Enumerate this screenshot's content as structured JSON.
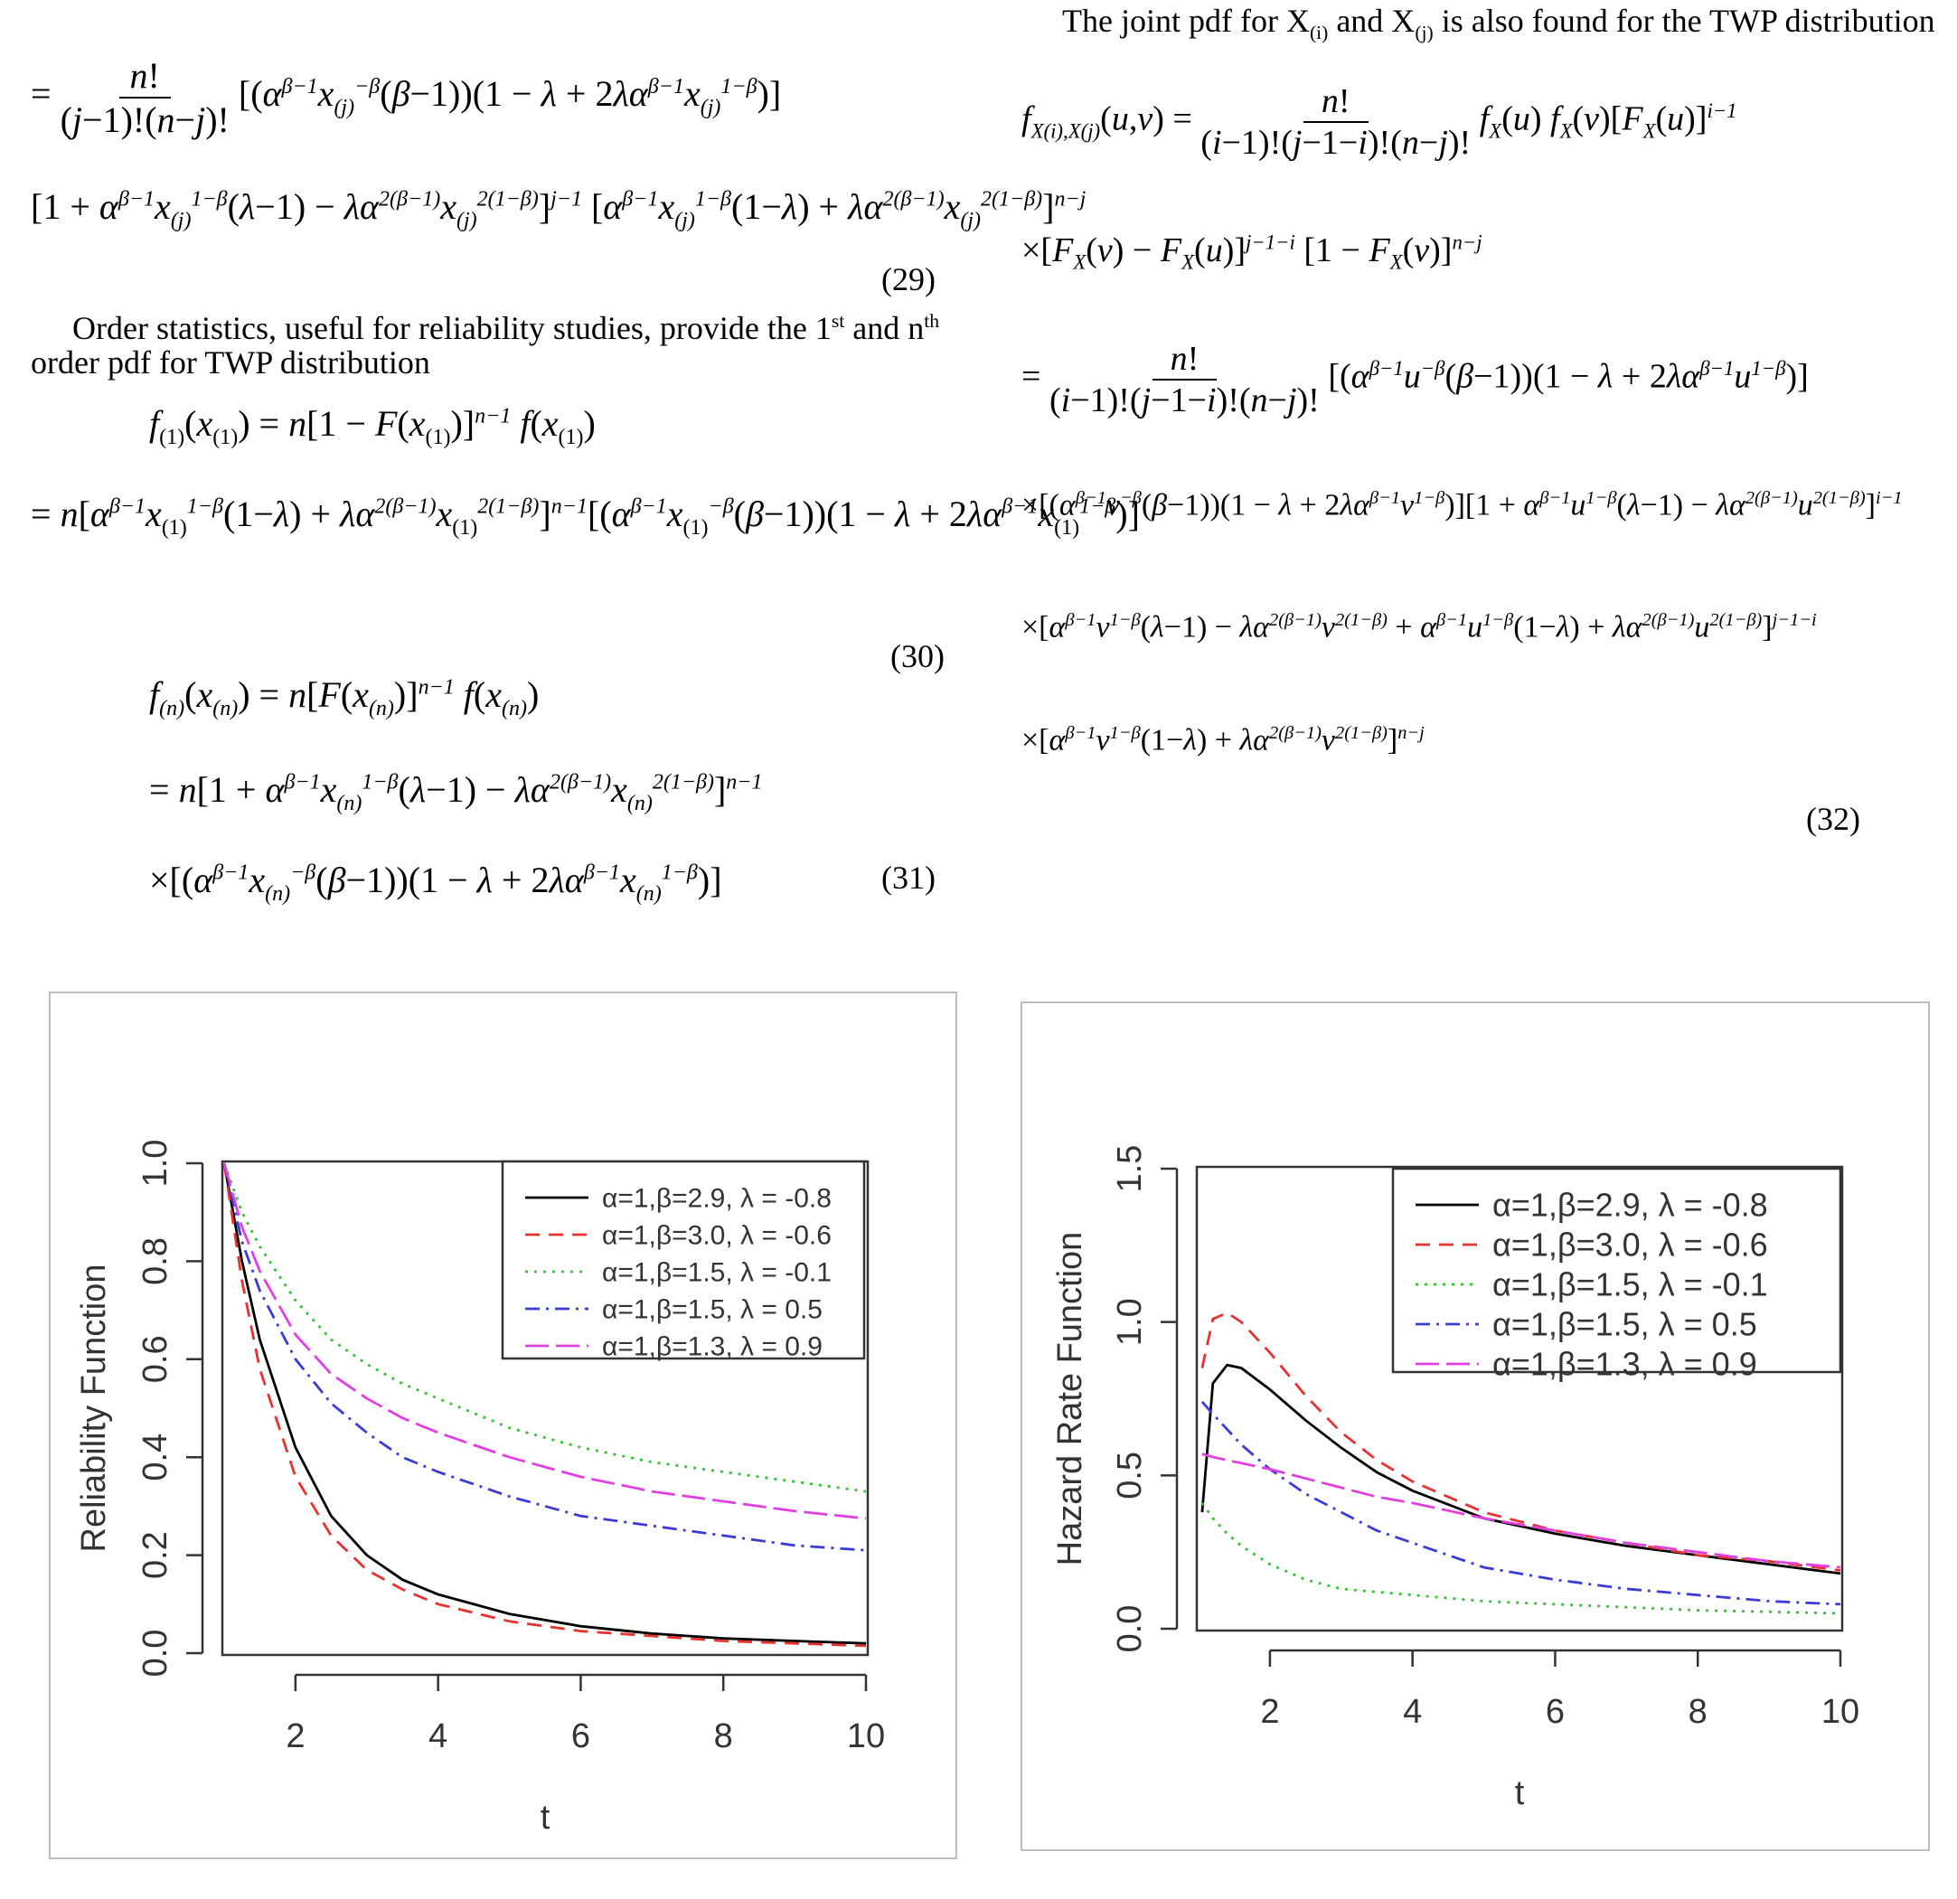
{
  "left_column": {
    "eq29_lines": [
      "= n! / ((j−1)!(n−j)!) [ (α^(β−1) x₍ⱼ₎^(−β) (β−1)) (1 − λ + 2λα^(β−1) x₍ⱼ₎^(1−β)) ]",
      "[ 1 + α^(β−1) x₍ⱼ₎^(1−β) (λ−1) − λα^(2(β−1)) x₍ⱼ₎^(2(1−β)) ]^(j−1) [ α^(β−1) x₍ⱼ₎^(1−β) (1−λ) + λα^(2(β−1)) x₍ⱼ₎^(2(1−β)) ]^(n−j)"
    ],
    "eq29_num": "(29)",
    "paragraph_line1": "Order statistics, useful for reliability studies, provide the 1st and nth",
    "paragraph_line2": "order pdf for TWP distribution",
    "eq30_lines": [
      "f₍₁₎(x₍₁₎) = n[1 − F(x₍₁₎)]^(n−1) f(x₍₁₎)",
      "= n[ α^(β−1) x₍₁₎^(1−β) (1−λ) + λα^(2(β−1)) x₍₁₎^(2(1−β)) ]^(n−1) [ (α^(β−1) x₍₁₎^(−β) (β−1)) (1 − λ + 2λα^(β−1) x₍₁₎^(1−β)) ]"
    ],
    "eq30_num": "(30)",
    "eq31_lines": [
      "f₍ₙ₎(x₍ₙ₎) = n[F(x₍ₙ₎)]^(n−1) f(x₍ₙ₎)",
      "= n[ 1 + α^(β−1) x₍ₙ₎^(1−β) (λ−1) − λα^(2(β−1)) x₍ₙ₎^(2(1−β)) ]^(n−1)",
      "× [ (α^(β−1) x₍ₙ₎^(−β) (β−1)) (1 − λ + 2λα^(β−1) x₍ₙ₎^(1−β)) ]"
    ],
    "eq31_num": "(31)"
  },
  "right_column": {
    "intro": "The joint pdf for X(i) and X(j) is also found for the TWP distribution",
    "eq32_lines": [
      "f_{X(i),X(j)}(u,v) = n! / ((i−1)!(j−1−i)!(n−j)!) f_X(u) f_X(v) [F_X(u)]^(i−1)",
      "× [F_X(v) − F_X(u)]^(j−1−i) [1 − F_X(v)]^(n−j)",
      "= n! / ((i−1)!(j−1−i)!(n−j)!) [ (α^(β−1) u^(−β) (β−1)) (1 − λ + 2λα^(β−1) u^(1−β)) ]",
      "× [ (α^(β−1) v^(−β) (β−1)) (1 − λ + 2λα^(β−1) v^(1−β)) ] [ 1 + α^(β−1) u^(1−β) (λ−1) − λα^(2(β−1)) u^(2(1−β)) ]^(i−1)",
      "× [ α^(β−1) v^(1−β) (λ−1) − λα^(2(β−1)) v^(2(1−β)) + α^(β−1) u^(1−β) (1−λ) + λα^(2(β−1)) u^(2(1−β)) ]^(j−1−i)",
      "× [ α^(β−1) v^(1−β) (1−λ) + λα^(2(β−1)) v^(2(1−β)) ]^(n−j)"
    ],
    "eq32_num": "(32)"
  },
  "legend_entries": [
    "α=1,β=2.9, λ = -0.8",
    "α=1,β=3.0, λ = -0.6",
    "α=1,β=1.5, λ = -0.1",
    "α=1,β=1.5, λ = 0.5",
    "α=1,β=1.3, λ = 0.9"
  ],
  "series_colors": [
    "#000000",
    "#e8322f",
    "#33c233",
    "#3b3bd6",
    "#e040e0"
  ],
  "chart_data": [
    {
      "type": "line",
      "xlabel": "t",
      "ylabel": "Reliability Function",
      "xlim": [
        1,
        10
      ],
      "ylim": [
        0,
        1.0
      ],
      "xticks": [
        2,
        4,
        6,
        8,
        10
      ],
      "yticks": [
        0.0,
        0.2,
        0.4,
        0.6,
        0.8,
        1.0
      ],
      "ytick_labels": [
        "0.0",
        "0.2",
        "0.4",
        "0.6",
        "0.8",
        "1.0"
      ],
      "legend_position": "top-right",
      "grid": false,
      "x": [
        1,
        1.25,
        1.5,
        2,
        2.5,
        3,
        3.5,
        4,
        5,
        6,
        7,
        8,
        9,
        10
      ],
      "series": [
        {
          "name": "α=1,β=2.9, λ = -0.8",
          "style": "solid",
          "values": [
            1.0,
            0.8,
            0.64,
            0.42,
            0.28,
            0.2,
            0.15,
            0.12,
            0.08,
            0.055,
            0.04,
            0.03,
            0.025,
            0.02
          ]
        },
        {
          "name": "α=1,β=3.0, λ = -0.6",
          "style": "dashed",
          "values": [
            1.0,
            0.76,
            0.58,
            0.36,
            0.24,
            0.17,
            0.13,
            0.1,
            0.065,
            0.045,
            0.035,
            0.025,
            0.02,
            0.015
          ]
        },
        {
          "name": "α=1,β=1.5, λ = -0.1",
          "style": "dotted",
          "values": [
            1.0,
            0.9,
            0.83,
            0.72,
            0.64,
            0.59,
            0.55,
            0.52,
            0.46,
            0.42,
            0.39,
            0.37,
            0.35,
            0.33
          ]
        },
        {
          "name": "α=1,β=1.5, λ = 0.5",
          "style": "dashdot",
          "values": [
            1.0,
            0.84,
            0.74,
            0.6,
            0.51,
            0.45,
            0.4,
            0.37,
            0.32,
            0.28,
            0.26,
            0.24,
            0.22,
            0.21
          ]
        },
        {
          "name": "α=1,β=1.3, λ = 0.9",
          "style": "longdash",
          "values": [
            1.0,
            0.87,
            0.78,
            0.65,
            0.57,
            0.52,
            0.48,
            0.45,
            0.4,
            0.36,
            0.33,
            0.31,
            0.29,
            0.275
          ]
        }
      ]
    },
    {
      "type": "line",
      "xlabel": "t",
      "ylabel": "Hazard Rate Function",
      "xlim": [
        1,
        10
      ],
      "ylim": [
        0,
        1.5
      ],
      "xticks": [
        2,
        4,
        6,
        8,
        10
      ],
      "yticks": [
        0.0,
        0.5,
        1.0,
        1.5
      ],
      "ytick_labels": [
        "0.0",
        "0.5",
        "1.0",
        "1.5"
      ],
      "legend_position": "top-right",
      "grid": false,
      "x": [
        1.05,
        1.2,
        1.4,
        1.6,
        2,
        2.5,
        3,
        3.5,
        4,
        5,
        6,
        7,
        8,
        9,
        10
      ],
      "series": [
        {
          "name": "α=1,β=2.9, λ = -0.8",
          "style": "solid",
          "values": [
            0.38,
            0.8,
            0.86,
            0.85,
            0.78,
            0.68,
            0.59,
            0.51,
            0.45,
            0.36,
            0.31,
            0.27,
            0.24,
            0.21,
            0.18
          ]
        },
        {
          "name": "α=1,β=3.0, λ = -0.6",
          "style": "dashed",
          "values": [
            0.85,
            1.01,
            1.03,
            1.0,
            0.9,
            0.76,
            0.64,
            0.55,
            0.48,
            0.38,
            0.32,
            0.28,
            0.24,
            0.22,
            0.19
          ]
        },
        {
          "name": "α=1,β=1.5, λ = -0.1",
          "style": "dotted",
          "values": [
            0.41,
            0.36,
            0.31,
            0.27,
            0.21,
            0.16,
            0.13,
            0.12,
            0.11,
            0.09,
            0.08,
            0.07,
            0.06,
            0.055,
            0.05
          ]
        },
        {
          "name": "α=1,β=1.5, λ = 0.5",
          "style": "dashdot",
          "values": [
            0.74,
            0.7,
            0.65,
            0.6,
            0.52,
            0.44,
            0.38,
            0.32,
            0.28,
            0.2,
            0.16,
            0.13,
            0.11,
            0.09,
            0.08
          ]
        },
        {
          "name": "α=1,β=1.3, λ = 0.9",
          "style": "longdash",
          "values": [
            0.57,
            0.56,
            0.55,
            0.54,
            0.52,
            0.49,
            0.46,
            0.43,
            0.41,
            0.36,
            0.32,
            0.28,
            0.25,
            0.22,
            0.2
          ]
        }
      ]
    }
  ]
}
